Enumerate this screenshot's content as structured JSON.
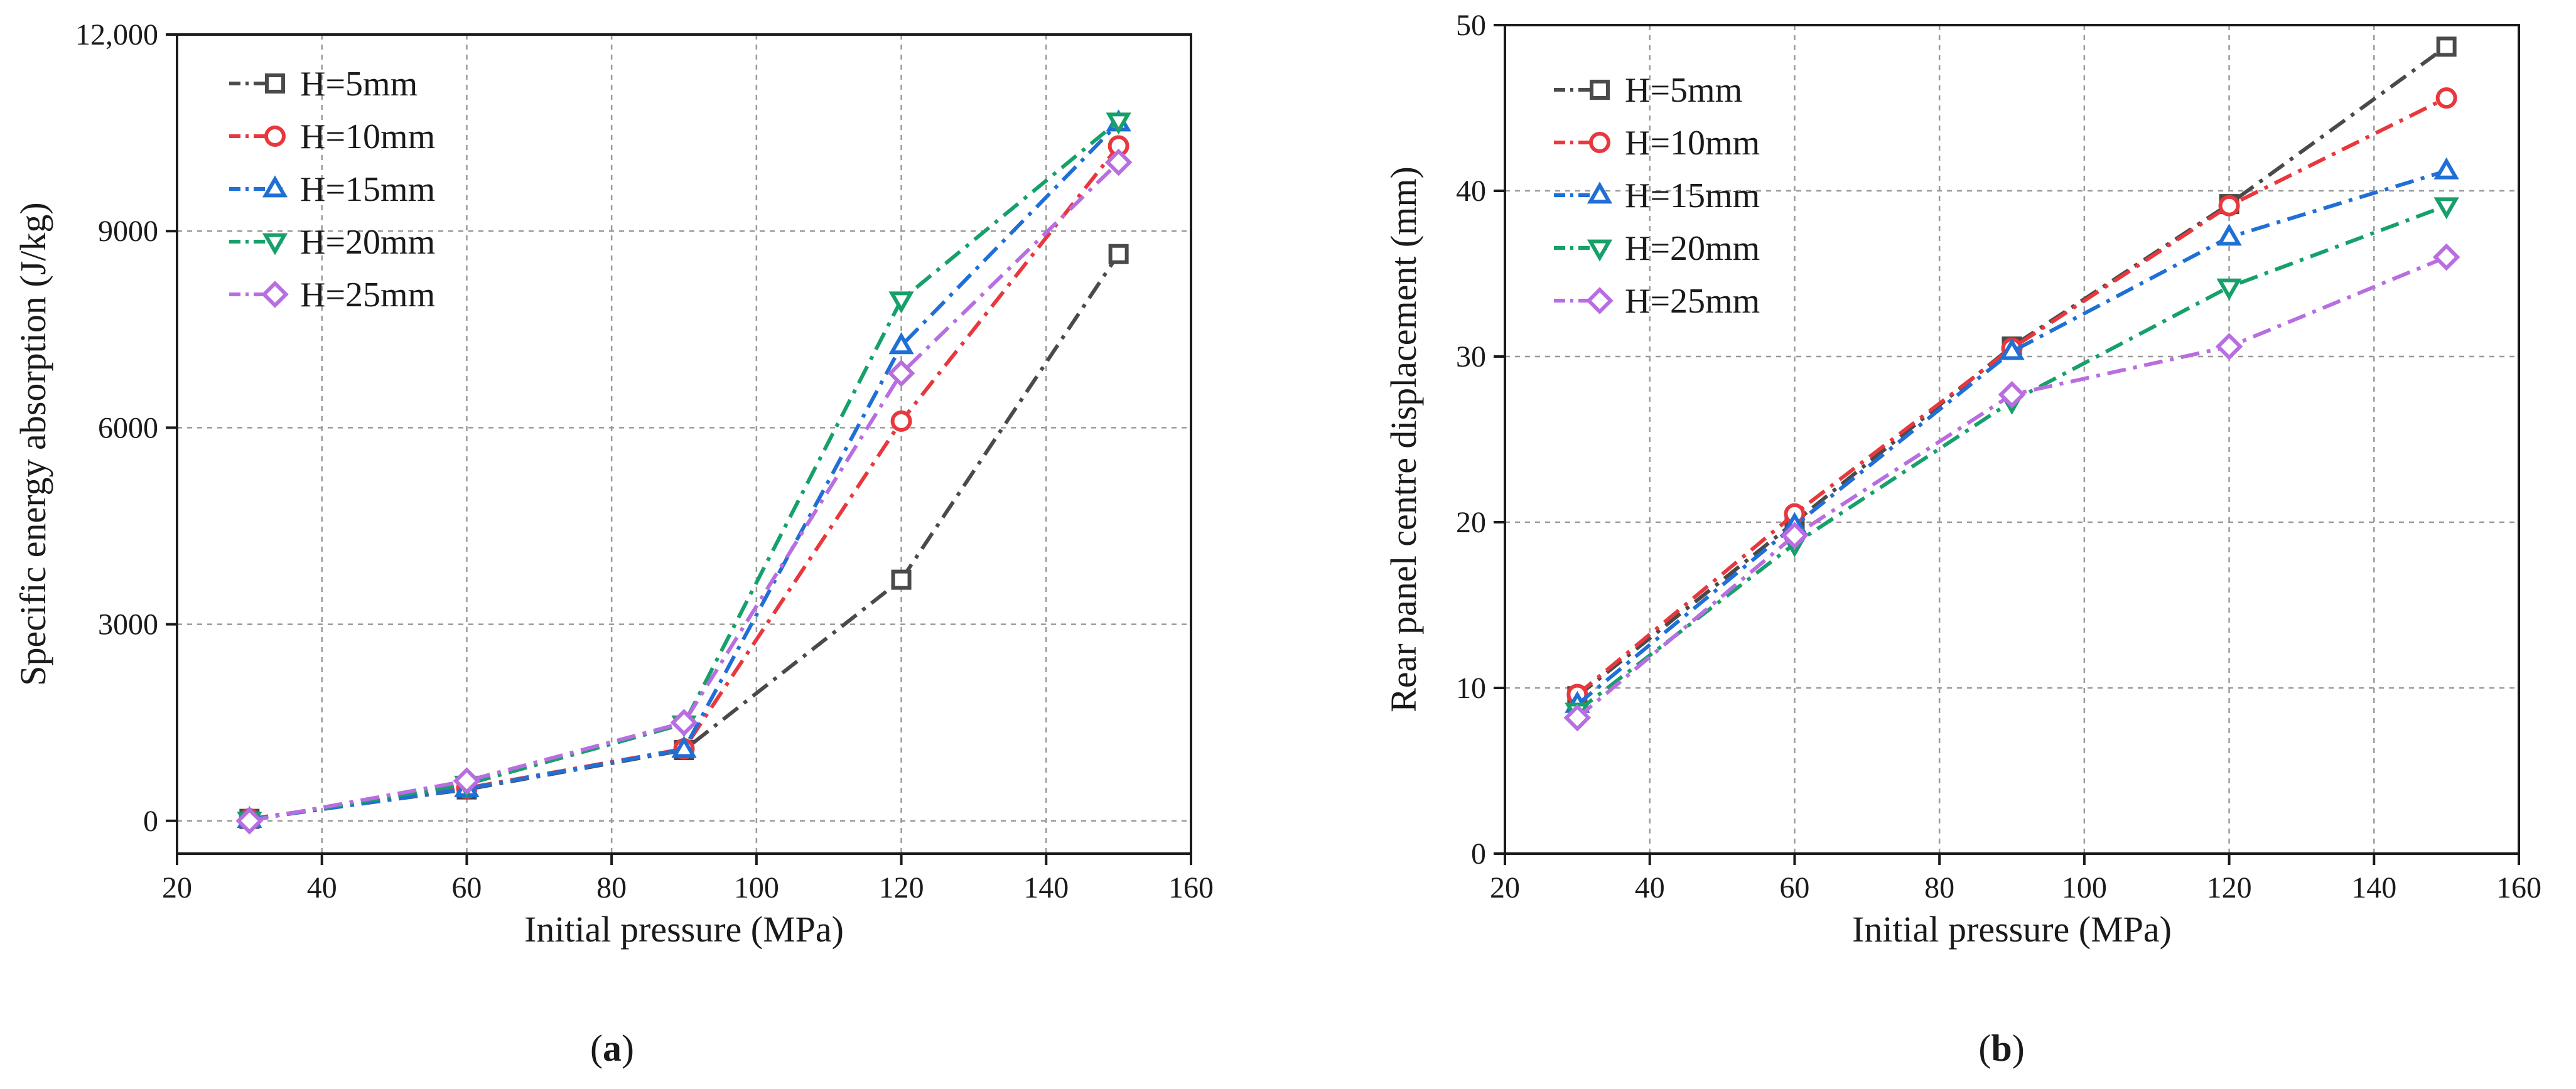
{
  "chart_data": [
    {
      "id": "a",
      "type": "line",
      "title": "",
      "caption_letter": "a",
      "xlabel": "Initial pressure (MPa)",
      "ylabel": "Specific energy absorption (J/kg)",
      "xlim": [
        20,
        160
      ],
      "ylim": [
        -500,
        12000
      ],
      "xticks": [
        20,
        40,
        60,
        80,
        100,
        120,
        140,
        160
      ],
      "yticks": [
        0,
        3000,
        6000,
        9000,
        12000
      ],
      "ytick_labels": [
        "0",
        "3000",
        "6000",
        "9000",
        "12,000"
      ],
      "grid": true,
      "legend_position": "top-left",
      "x": [
        30,
        60,
        90,
        120,
        150
      ],
      "series": [
        {
          "name": "H=5mm",
          "values": [
            30,
            480,
            1080,
            3680,
            8650
          ]
        },
        {
          "name": "H=10mm",
          "values": [
            30,
            500,
            1100,
            6100,
            10300
          ]
        },
        {
          "name": "H=15mm",
          "values": [
            20,
            490,
            1090,
            7250,
            10650
          ]
        },
        {
          "name": "H=20mm",
          "values": [
            10,
            560,
            1480,
            7950,
            10680
          ]
        },
        {
          "name": "H=25mm",
          "values": [
            0,
            610,
            1500,
            6830,
            10050
          ]
        }
      ]
    },
    {
      "id": "b",
      "type": "line",
      "title": "",
      "caption_letter": "b",
      "xlabel": "Initial pressure (MPa)",
      "ylabel": "Rear panel centre displacement (mm)",
      "xlim": [
        20,
        160
      ],
      "ylim": [
        0,
        50
      ],
      "xticks": [
        20,
        40,
        60,
        80,
        100,
        120,
        140,
        160
      ],
      "yticks": [
        0,
        10,
        20,
        30,
        40,
        50
      ],
      "ytick_labels": [
        "0",
        "10",
        "20",
        "30",
        "40",
        "50"
      ],
      "grid": true,
      "legend_position": "top-left",
      "x": [
        30,
        60,
        90,
        120,
        150
      ],
      "series": [
        {
          "name": "H=5mm",
          "values": [
            9.5,
            20.0,
            30.6,
            39.2,
            48.7
          ]
        },
        {
          "name": "H=10mm",
          "values": [
            9.6,
            20.5,
            30.5,
            39.1,
            45.6
          ]
        },
        {
          "name": "H=15mm",
          "values": [
            9.0,
            19.8,
            30.3,
            37.2,
            41.2
          ]
        },
        {
          "name": "H=20mm",
          "values": [
            8.6,
            18.7,
            27.3,
            34.2,
            39.1
          ]
        },
        {
          "name": "H=25mm",
          "values": [
            8.2,
            19.2,
            27.7,
            30.6,
            36.0
          ]
        }
      ]
    }
  ],
  "series_styles": [
    {
      "color": "#4a4a4a",
      "marker": "square",
      "dash": "dashdot"
    },
    {
      "color": "#e8383d",
      "marker": "circle",
      "dash": "dashdot"
    },
    {
      "color": "#1f6fd6",
      "marker": "triangle-up",
      "dash": "dashdot"
    },
    {
      "color": "#16a06a",
      "marker": "triangle-down",
      "dash": "dashdot"
    },
    {
      "color": "#b86ee0",
      "marker": "diamond",
      "dash": "dashdot"
    }
  ]
}
